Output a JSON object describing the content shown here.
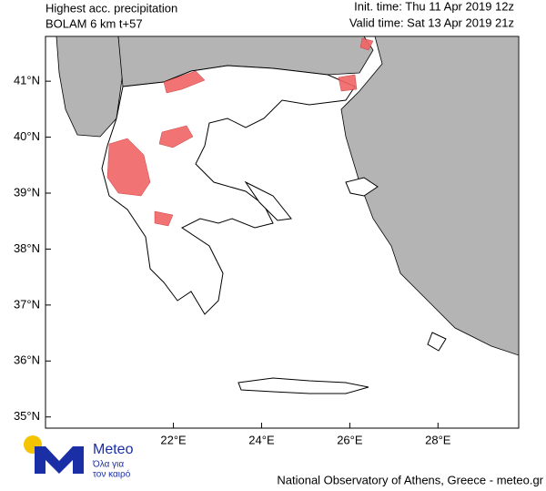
{
  "header": {
    "title": "Highest acc. precipitation",
    "model": "BOLAM 6 km t+57",
    "init_time": "Init. time: Thu 11 Apr 2019 12z",
    "valid_time": "Valid time: Sat 13 Apr 2019 21z"
  },
  "map": {
    "lonlim": [
      19.1,
      29.83
    ],
    "latlim": [
      34.8,
      41.8
    ],
    "xticks": [
      {
        "value": 22,
        "label": "22°E"
      },
      {
        "value": 24,
        "label": "24°E"
      },
      {
        "value": 26,
        "label": "26°E"
      },
      {
        "value": 28,
        "label": "28°E"
      }
    ],
    "yticks": [
      {
        "value": 41,
        "label": "41°N"
      },
      {
        "value": 40,
        "label": "40°N"
      },
      {
        "value": 39,
        "label": "39°N"
      },
      {
        "value": 38,
        "label": "38°N"
      },
      {
        "value": 37,
        "label": "37°N"
      },
      {
        "value": 36,
        "label": "36°N"
      },
      {
        "value": 35,
        "label": "35°N"
      }
    ]
  },
  "logo": {
    "name": "Meteo",
    "tagline": [
      "Όλα για",
      "τον καιρό"
    ]
  },
  "footer": "National Observatory of Athens, Greece - meteo.gr"
}
